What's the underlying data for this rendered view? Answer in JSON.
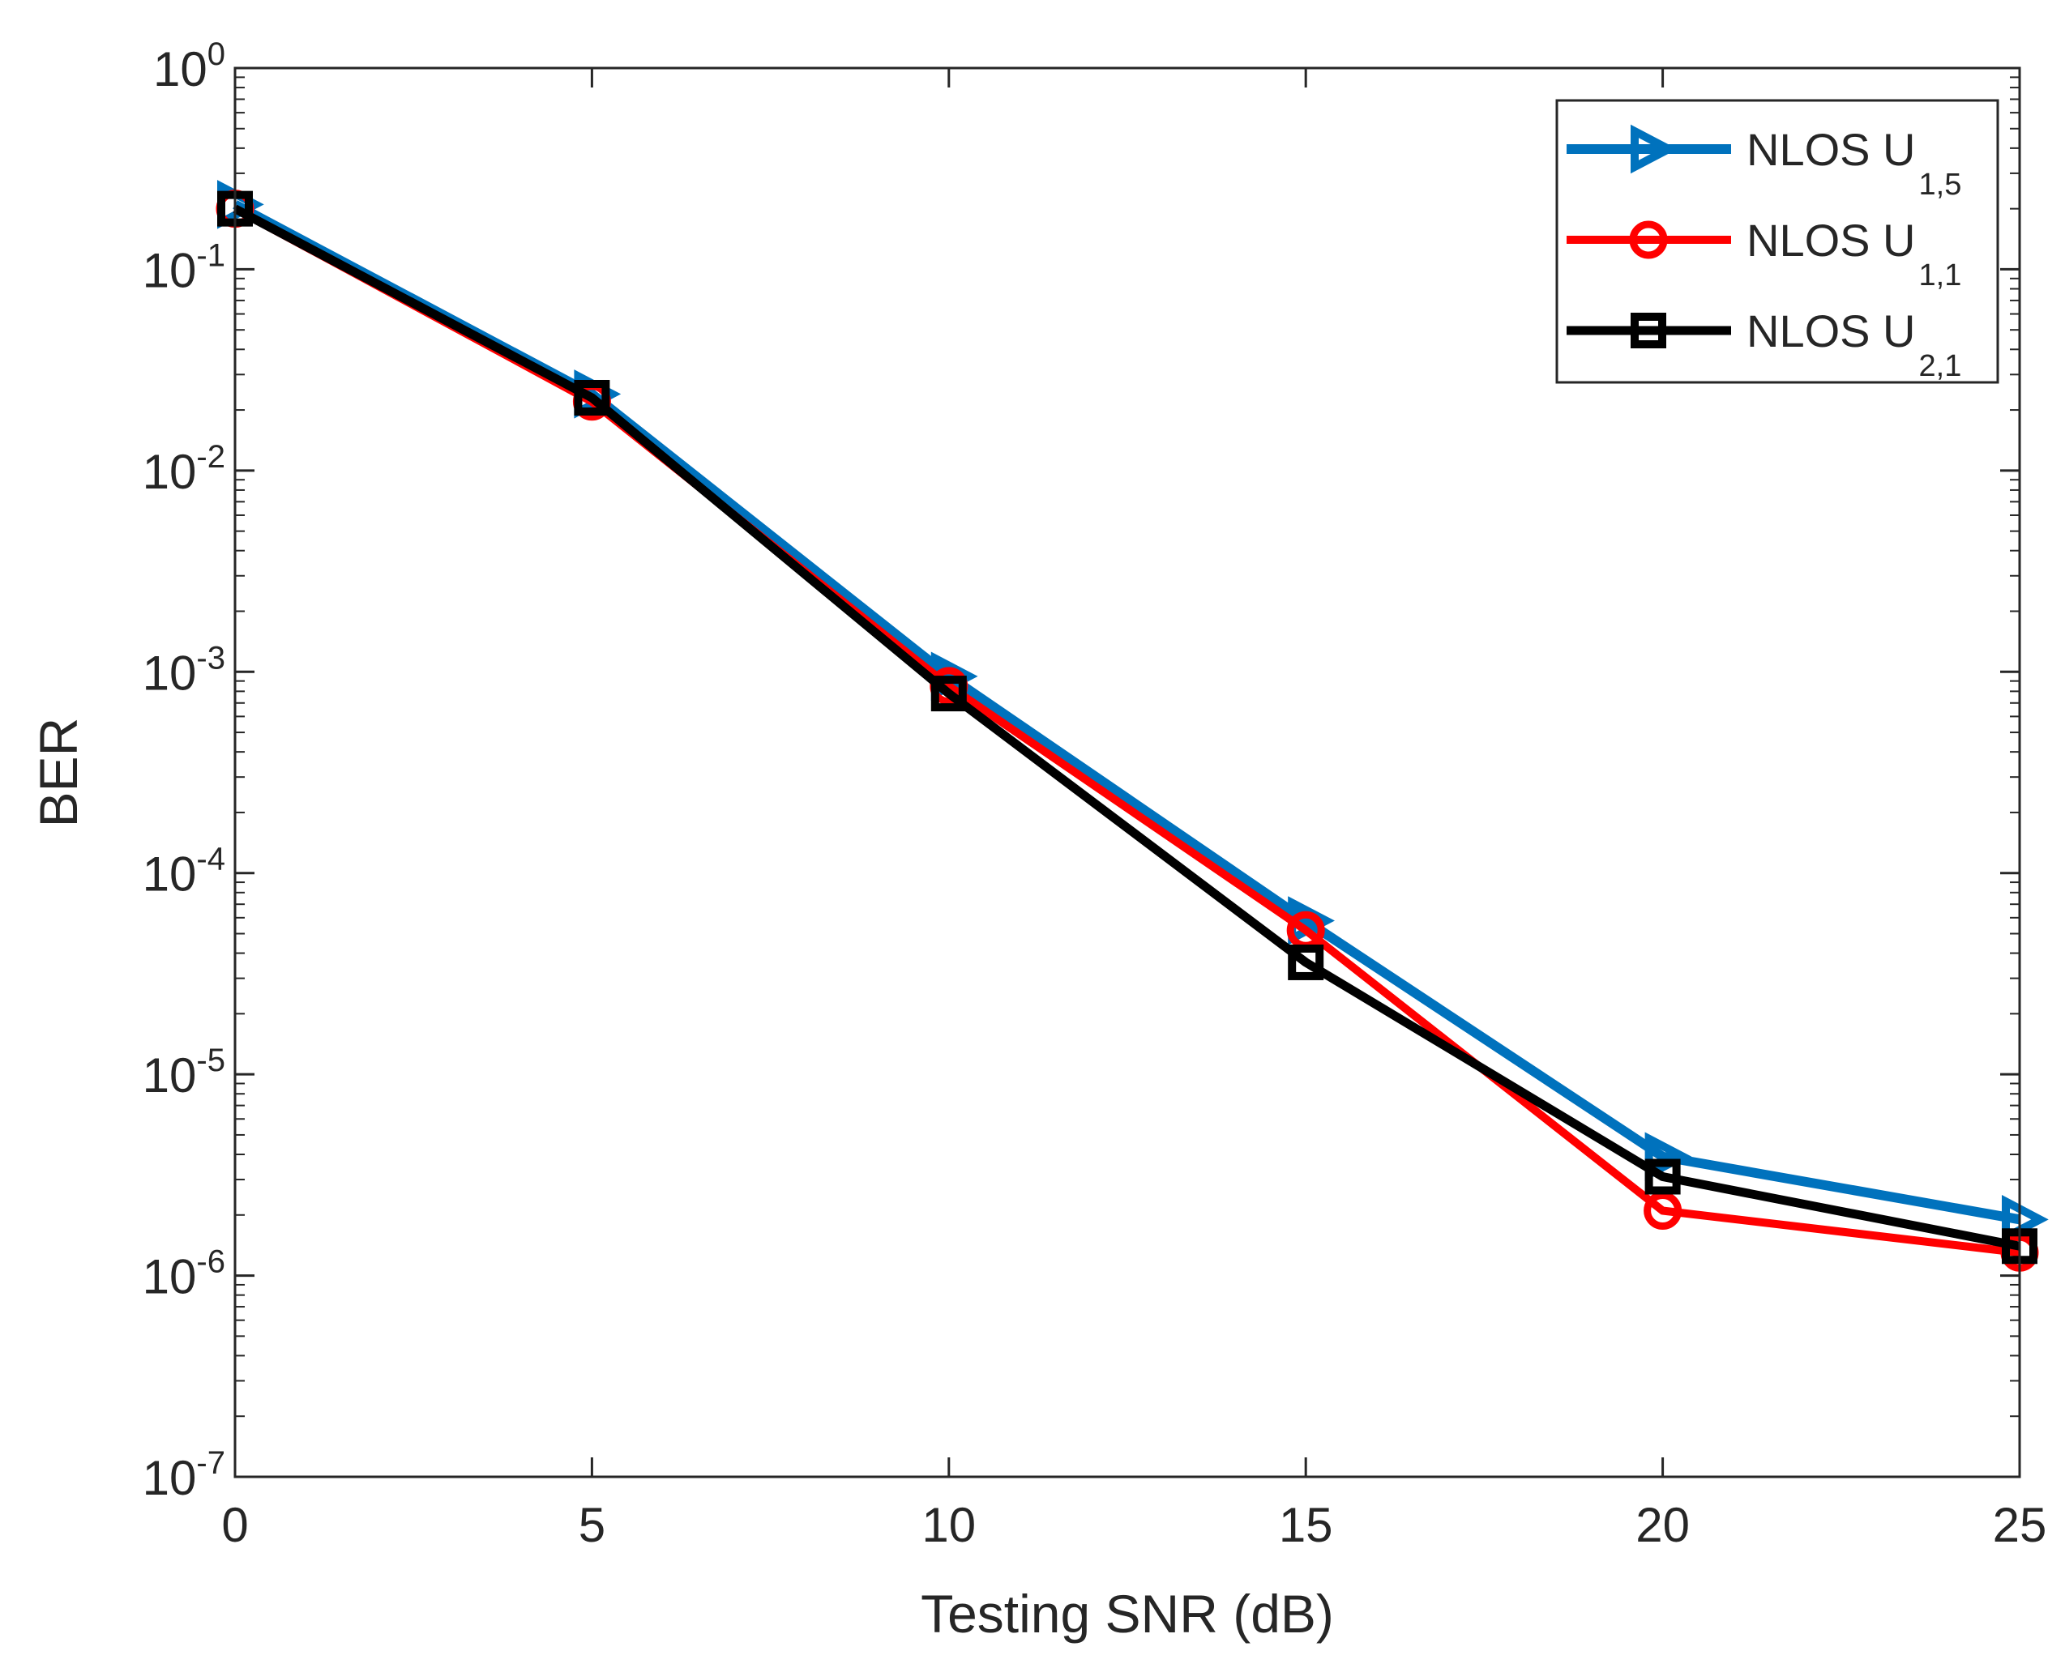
{
  "chart_data": {
    "type": "line",
    "title": "",
    "xlabel": "Testing SNR (dB)",
    "ylabel": "BER",
    "yscale": "log",
    "xlim": [
      0,
      25
    ],
    "ylim": [
      1e-07,
      1
    ],
    "x_ticks": [
      0,
      5,
      10,
      15,
      20,
      25
    ],
    "x_tick_labels": [
      "0",
      "5",
      "10",
      "15",
      "20",
      "25"
    ],
    "y_ticks": [
      {
        "base": "10",
        "exp": "0",
        "value": 1
      },
      {
        "base": "10",
        "exp": "-1",
        "value": 0.1
      },
      {
        "base": "10",
        "exp": "-2",
        "value": 0.01
      },
      {
        "base": "10",
        "exp": "-3",
        "value": 0.001
      },
      {
        "base": "10",
        "exp": "-4",
        "value": 0.0001
      },
      {
        "base": "10",
        "exp": "-5",
        "value": 1e-05
      },
      {
        "base": "10",
        "exp": "-6",
        "value": 1e-06
      },
      {
        "base": "10",
        "exp": "-7",
        "value": 1e-07
      }
    ],
    "grid": false,
    "legend_position": "top-right",
    "x": [
      0,
      5,
      10,
      15,
      20,
      25
    ],
    "series": [
      {
        "name": "NLOS U",
        "sub": "1,5",
        "color": "#0072BD",
        "marker": "triangle-right",
        "values": [
          0.21,
          0.024,
          0.00095,
          5.8e-05,
          3.9e-06,
          1.9e-06
        ]
      },
      {
        "name": "NLOS U",
        "sub": "1,1",
        "color": "#FF0000",
        "marker": "circle",
        "values": [
          0.2,
          0.022,
          0.00085,
          5.2e-05,
          2.1e-06,
          1.3e-06
        ]
      },
      {
        "name": "NLOS U",
        "sub": "2,1",
        "color": "#000000",
        "marker": "square",
        "values": [
          0.2,
          0.023,
          0.00078,
          3.6e-05,
          3.1e-06,
          1.4e-06
        ]
      }
    ]
  }
}
